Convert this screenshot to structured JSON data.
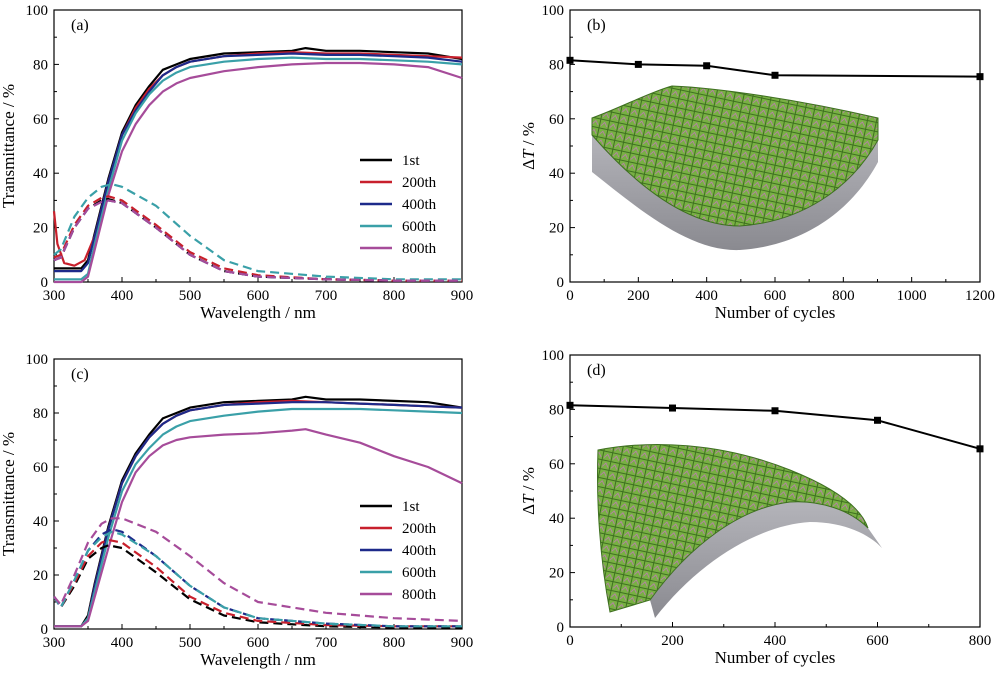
{
  "colors": {
    "1st": "#000000",
    "200th": "#c8202c",
    "400th": "#1d2a8a",
    "600th": "#3aa0a8",
    "800th": "#a64c9a",
    "surface_green": "#6aa43a",
    "surface_gray": "#8e8e94"
  },
  "chart_data": [
    {
      "type": "line",
      "panel": "(a)",
      "xlabel": "Wavelength / nm",
      "ylabel": "Transmittance / %",
      "xlim": [
        300,
        900
      ],
      "ylim": [
        0,
        100
      ],
      "xticks": [
        300,
        400,
        500,
        600,
        700,
        800,
        900
      ],
      "yticks": [
        0,
        20,
        40,
        60,
        80,
        100
      ],
      "legend_position": "center-right",
      "legend": [
        "1st",
        "200th",
        "400th",
        "600th",
        "800th"
      ],
      "series": [
        {
          "name": "1st",
          "style": "solid",
          "x": [
            300,
            340,
            350,
            360,
            380,
            400,
            420,
            440,
            460,
            480,
            500,
            550,
            600,
            650,
            670,
            700,
            750,
            800,
            850,
            900
          ],
          "y": [
            5,
            5,
            8,
            18,
            38,
            55,
            65,
            72,
            78,
            80,
            82,
            84,
            84.5,
            85,
            86,
            85,
            85,
            84.5,
            84,
            82
          ]
        },
        {
          "name": "200th",
          "style": "solid",
          "x": [
            300,
            305,
            315,
            330,
            345,
            360,
            380,
            400,
            420,
            440,
            460,
            480,
            500,
            550,
            600,
            650,
            700,
            750,
            800,
            850,
            900
          ],
          "y": [
            26,
            14,
            7,
            6,
            8,
            17,
            37,
            54,
            64,
            71,
            76,
            79,
            81,
            83,
            84,
            84.5,
            84,
            84,
            83.5,
            83,
            82.5
          ]
        },
        {
          "name": "400th",
          "style": "solid",
          "x": [
            300,
            340,
            350,
            360,
            380,
            400,
            420,
            440,
            460,
            480,
            500,
            550,
            600,
            650,
            700,
            750,
            800,
            850,
            900
          ],
          "y": [
            4,
            4,
            7,
            17,
            37,
            54,
            63,
            70,
            76,
            79,
            81,
            83,
            83.5,
            84,
            83.5,
            83.5,
            83,
            82.5,
            81
          ]
        },
        {
          "name": "600th",
          "style": "solid",
          "x": [
            300,
            340,
            350,
            360,
            380,
            400,
            420,
            440,
            460,
            480,
            500,
            550,
            600,
            650,
            700,
            750,
            800,
            850,
            900
          ],
          "y": [
            1,
            1,
            3,
            14,
            34,
            52,
            62,
            69,
            74,
            77,
            79,
            81,
            82,
            82.5,
            82,
            82,
            81.5,
            81,
            80
          ]
        },
        {
          "name": "800th",
          "style": "solid",
          "x": [
            300,
            340,
            350,
            360,
            380,
            400,
            420,
            440,
            460,
            480,
            500,
            550,
            600,
            650,
            700,
            750,
            800,
            850,
            900
          ],
          "y": [
            0,
            0,
            2,
            12,
            32,
            48,
            58,
            65,
            70,
            73,
            75,
            77.5,
            79,
            80,
            80.5,
            80.5,
            80,
            79,
            75
          ]
        },
        {
          "name": "1st",
          "style": "dashed",
          "x": [
            300,
            310,
            330,
            350,
            370,
            380,
            400,
            450,
            500,
            550,
            600,
            700,
            800,
            900
          ],
          "y": [
            8,
            9,
            20,
            27,
            30,
            30.5,
            29,
            20,
            10,
            4,
            2,
            1,
            0.5,
            0.5
          ]
        },
        {
          "name": "200th",
          "style": "dashed",
          "x": [
            300,
            310,
            330,
            350,
            370,
            380,
            400,
            450,
            500,
            550,
            600,
            700,
            800,
            900
          ],
          "y": [
            9,
            10,
            21,
            28,
            31,
            31.5,
            30,
            21,
            11,
            5,
            2.5,
            1,
            0.5,
            0.5
          ]
        },
        {
          "name": "400th",
          "style": "dashed",
          "x": [
            300,
            310,
            330,
            350,
            370,
            380,
            400,
            450,
            500,
            550,
            600,
            700,
            800,
            900
          ],
          "y": [
            8,
            9,
            20,
            27,
            29.5,
            30,
            29,
            20,
            10,
            4,
            2,
            1,
            0.5,
            0.5
          ]
        },
        {
          "name": "600th",
          "style": "dashed",
          "x": [
            300,
            310,
            330,
            350,
            370,
            385,
            400,
            450,
            500,
            550,
            600,
            700,
            800,
            900
          ],
          "y": [
            10,
            12,
            24,
            31,
            35,
            36,
            35,
            28,
            17,
            8,
            4,
            2,
            1,
            1
          ]
        },
        {
          "name": "800th",
          "style": "dashed",
          "x": [
            300,
            310,
            330,
            350,
            370,
            380,
            400,
            450,
            500,
            550,
            600,
            700,
            800,
            900
          ],
          "y": [
            8,
            9,
            20,
            27,
            29.5,
            30,
            29,
            20,
            10,
            4,
            2,
            1,
            0.5,
            0.5
          ]
        }
      ]
    },
    {
      "type": "line",
      "panel": "(b)",
      "xlabel": "Number of cycles",
      "ylabel_prefix": "Δ",
      "ylabel_var": "T",
      "ylabel_suffix": " / %",
      "xlim": [
        0,
        1200
      ],
      "ylim": [
        0,
        100
      ],
      "xticks": [
        0,
        200,
        400,
        600,
        800,
        1000,
        1200
      ],
      "yticks": [
        0,
        20,
        40,
        60,
        80,
        100
      ],
      "series": [
        {
          "marker": "square",
          "x": [
            0,
            200,
            400,
            600,
            1200
          ],
          "y": [
            81.5,
            80,
            79.5,
            76,
            75.5
          ]
        }
      ]
    },
    {
      "type": "line",
      "panel": "(c)",
      "xlabel": "Wavelength / nm",
      "ylabel": "Transmittance / %",
      "xlim": [
        300,
        900
      ],
      "ylim": [
        0,
        100
      ],
      "xticks": [
        300,
        400,
        500,
        600,
        700,
        800,
        900
      ],
      "yticks": [
        0,
        20,
        40,
        60,
        80,
        100
      ],
      "legend_position": "lower-right",
      "legend": [
        "1st",
        "200th",
        "400th",
        "600th",
        "800th"
      ],
      "series": [
        {
          "name": "1st",
          "style": "solid",
          "x": [
            300,
            340,
            350,
            360,
            380,
            400,
            420,
            440,
            460,
            480,
            500,
            550,
            600,
            650,
            670,
            700,
            750,
            800,
            850,
            900
          ],
          "y": [
            1,
            1,
            5,
            17,
            38,
            55,
            65,
            72,
            78,
            80,
            82,
            84,
            84.5,
            85,
            86,
            85,
            85,
            84.5,
            84,
            82
          ]
        },
        {
          "name": "200th",
          "style": "solid",
          "x": [
            300,
            340,
            350,
            360,
            380,
            400,
            420,
            440,
            460,
            480,
            500,
            550,
            600,
            650,
            700,
            750,
            800,
            850,
            900
          ],
          "y": [
            1,
            1,
            4,
            16,
            37,
            54,
            64,
            71,
            76,
            79,
            81,
            83,
            84,
            84.5,
            84,
            83.5,
            83,
            82.5,
            82
          ]
        },
        {
          "name": "400th",
          "style": "solid",
          "x": [
            300,
            340,
            350,
            360,
            380,
            400,
            420,
            440,
            460,
            480,
            500,
            550,
            600,
            650,
            700,
            750,
            800,
            850,
            900
          ],
          "y": [
            1,
            1,
            4,
            16,
            37,
            54,
            64,
            71,
            76,
            79,
            81,
            83,
            83.5,
            84,
            84,
            83.5,
            83,
            82.5,
            82
          ]
        },
        {
          "name": "600th",
          "style": "solid",
          "x": [
            300,
            340,
            350,
            360,
            380,
            400,
            420,
            440,
            460,
            480,
            500,
            550,
            600,
            650,
            700,
            750,
            800,
            850,
            900
          ],
          "y": [
            1,
            1,
            4,
            14,
            34,
            51,
            61,
            67,
            72,
            75,
            77,
            79,
            80.5,
            81.5,
            81.5,
            81.5,
            81,
            80.5,
            80
          ]
        },
        {
          "name": "800th",
          "style": "solid",
          "x": [
            300,
            340,
            350,
            360,
            380,
            400,
            420,
            440,
            460,
            480,
            500,
            550,
            600,
            650,
            670,
            700,
            750,
            800,
            850,
            900
          ],
          "y": [
            1,
            1,
            3,
            12,
            30,
            47,
            58,
            64,
            68,
            70,
            71,
            72,
            72.5,
            73.5,
            74,
            72,
            69,
            64,
            60,
            54
          ]
        },
        {
          "name": "1st",
          "style": "dashed",
          "x": [
            300,
            310,
            330,
            350,
            370,
            380,
            400,
            450,
            500,
            550,
            600,
            700,
            800,
            900
          ],
          "y": [
            12,
            8,
            16,
            26,
            30,
            31,
            30,
            21,
            11,
            5,
            2.5,
            1,
            0.5,
            0.5
          ]
        },
        {
          "name": "200th",
          "style": "dashed",
          "x": [
            300,
            310,
            330,
            350,
            370,
            380,
            400,
            450,
            500,
            550,
            600,
            700,
            800,
            900
          ],
          "y": [
            12,
            8,
            17,
            27,
            32,
            33,
            32,
            23,
            12,
            6,
            3,
            1.5,
            1,
            1
          ]
        },
        {
          "name": "400th",
          "style": "dashed",
          "x": [
            300,
            310,
            330,
            350,
            370,
            385,
            400,
            450,
            500,
            550,
            600,
            700,
            800,
            900
          ],
          "y": [
            12,
            8,
            18,
            29,
            35,
            37,
            36,
            27,
            16,
            8,
            4,
            2,
            1,
            1
          ]
        },
        {
          "name": "600th",
          "style": "dashed",
          "x": [
            300,
            310,
            330,
            350,
            370,
            385,
            400,
            450,
            500,
            550,
            600,
            700,
            800,
            900
          ],
          "y": [
            12,
            8,
            18,
            29,
            34,
            36,
            35,
            27,
            16,
            8,
            4,
            2,
            1,
            1
          ]
        },
        {
          "name": "800th",
          "style": "dashed",
          "x": [
            300,
            310,
            330,
            350,
            370,
            385,
            400,
            450,
            500,
            550,
            600,
            700,
            800,
            900
          ],
          "y": [
            12,
            9,
            20,
            32,
            39,
            41,
            41,
            36,
            27,
            17,
            10,
            6,
            4,
            3
          ]
        }
      ]
    },
    {
      "type": "line",
      "panel": "(d)",
      "xlabel": "Number of cycles",
      "ylabel_prefix": "Δ",
      "ylabel_var": "T",
      "ylabel_suffix": " / %",
      "xlim": [
        0,
        800
      ],
      "ylim": [
        0,
        100
      ],
      "xticks": [
        0,
        200,
        400,
        600,
        800
      ],
      "yticks": [
        0,
        20,
        40,
        60,
        80,
        100
      ],
      "series": [
        {
          "marker": "square",
          "x": [
            0,
            200,
            400,
            600,
            800
          ],
          "y": [
            81.5,
            80.5,
            79.5,
            76,
            65.5
          ]
        }
      ]
    }
  ]
}
